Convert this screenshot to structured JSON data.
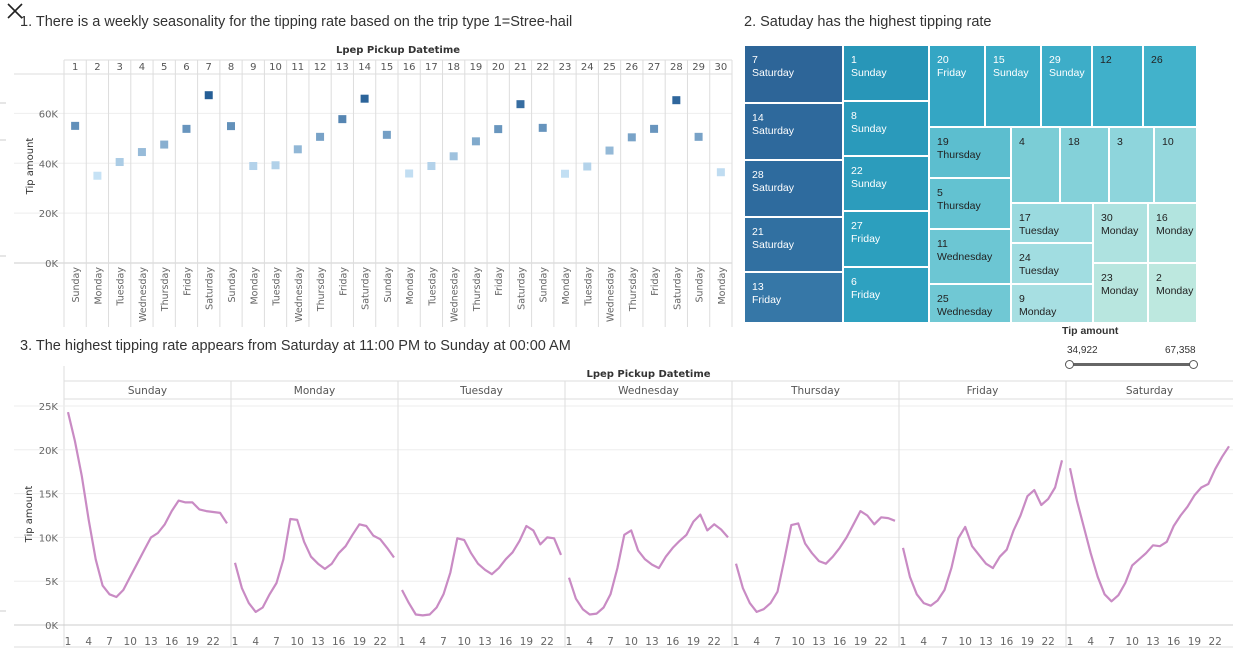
{
  "header": {
    "title1": "1. There is a weekly seasonality for the tipping rate based on the trip type 1=Stree-hail",
    "title2": "2. Satuday has the highest tipping rate",
    "title3": "3. The highest tipping rate appears from Saturday at 11:00 PM to Sunday at 00:00 AM"
  },
  "filter": {
    "label": "Tip amount",
    "min": "34,922",
    "max": "67,358"
  },
  "chart_data": [
    {
      "type": "scatter",
      "xlabel": "Lpep Pickup Datetime",
      "ylabel": "Tip amount",
      "ylim": [
        0,
        75000
      ],
      "yticks": [
        "0K",
        "20K",
        "40K",
        "60K"
      ],
      "grid": true,
      "days": [
        "1",
        "2",
        "3",
        "4",
        "5",
        "6",
        "7",
        "8",
        "9",
        "10",
        "11",
        "12",
        "13",
        "14",
        "15",
        "16",
        "17",
        "18",
        "19",
        "20",
        "21",
        "22",
        "23",
        "24",
        "25",
        "26",
        "27",
        "28",
        "29",
        "30"
      ],
      "weekdays": [
        "Sunday",
        "Monday",
        "Tuesday",
        "Wednesday",
        "Thursday",
        "Friday",
        "Saturday",
        "Sunday",
        "Monday",
        "Tuesday",
        "Wednesday",
        "Thursday",
        "Friday",
        "Saturday",
        "Sunday",
        "Monday",
        "Tuesday",
        "Wednesday",
        "Thursday",
        "Friday",
        "Saturday",
        "Sunday",
        "Monday",
        "Tuesday",
        "Wednesday",
        "Thursday",
        "Friday",
        "Saturday",
        "Sunday",
        "Monday"
      ],
      "values": [
        55000,
        35000,
        40500,
        44500,
        47500,
        53800,
        67300,
        54900,
        38900,
        39200,
        45600,
        50600,
        57700,
        65900,
        51400,
        35900,
        38900,
        42800,
        48800,
        53700,
        63700,
        54200,
        35800,
        38700,
        45100,
        50400,
        53800,
        65300,
        50600,
        36400
      ]
    },
    {
      "type": "treemap",
      "xlabel": "Tip amount",
      "cells": [
        {
          "day": "7",
          "weekday": "Saturday",
          "color": "#2d6598",
          "dark": true
        },
        {
          "day": "14",
          "weekday": "Saturday",
          "color": "#2e699c",
          "dark": true
        },
        {
          "day": "28",
          "weekday": "Saturday",
          "color": "#2e6b9e",
          "dark": true
        },
        {
          "day": "21",
          "weekday": "Saturday",
          "color": "#3170a1",
          "dark": true
        },
        {
          "day": "13",
          "weekday": "Friday",
          "color": "#3677a7",
          "dark": true
        },
        {
          "day": "1",
          "weekday": "Sunday",
          "color": "#2896b8",
          "dark": true
        },
        {
          "day": "8",
          "weekday": "Sunday",
          "color": "#2a9abb",
          "dark": true
        },
        {
          "day": "22",
          "weekday": "Sunday",
          "color": "#2c9cbc",
          "dark": true
        },
        {
          "day": "27",
          "weekday": "Friday",
          "color": "#2c9fbe",
          "dark": true
        },
        {
          "day": "6",
          "weekday": "Friday",
          "color": "#2ea1c0",
          "dark": true
        },
        {
          "day": "20",
          "weekday": "Friday",
          "color": "#34a6c4",
          "dark": true
        },
        {
          "day": "15",
          "weekday": "Sunday",
          "color": "#3aabc6",
          "dark": true
        },
        {
          "day": "29",
          "weekday": "Sunday",
          "color": "#3dadc8",
          "dark": true
        },
        {
          "day": "12",
          "weekday": "",
          "color": "#40b0ca",
          "dark": false
        },
        {
          "day": "26",
          "weekday": "",
          "color": "#42b2cb",
          "dark": false
        },
        {
          "day": "19",
          "weekday": "Thursday",
          "color": "#5cbecf",
          "dark": false
        },
        {
          "day": "5",
          "weekday": "Thursday",
          "color": "#63c2d1",
          "dark": false
        },
        {
          "day": "11",
          "weekday": "Wednesday",
          "color": "#6cc6d3",
          "dark": false
        },
        {
          "day": "25",
          "weekday": "Wednesday",
          "color": "#70c8d4",
          "dark": false
        },
        {
          "day": "4",
          "weekday": "",
          "color": "#7bcdd6",
          "dark": false
        },
        {
          "day": "18",
          "weekday": "",
          "color": "#84d1d9",
          "dark": false
        },
        {
          "day": "3",
          "weekday": "",
          "color": "#8ed5dc",
          "dark": false
        },
        {
          "day": "10",
          "weekday": "",
          "color": "#95d8dd",
          "dark": false
        },
        {
          "day": "17",
          "weekday": "Tuesday",
          "color": "#9adadf",
          "dark": false
        },
        {
          "day": "24",
          "weekday": "Tuesday",
          "color": "#a1dde1",
          "dark": false
        },
        {
          "day": "9",
          "weekday": "Monday",
          "color": "#a7dfe2",
          "dark": false
        },
        {
          "day": "30",
          "weekday": "Monday",
          "color": "#aee2e0",
          "dark": false
        },
        {
          "day": "16",
          "weekday": "Monday",
          "color": "#b2e4df",
          "dark": false
        },
        {
          "day": "23",
          "weekday": "Monday",
          "color": "#b8e6df",
          "dark": false
        },
        {
          "day": "2",
          "weekday": "Monday",
          "color": "#bde8df",
          "dark": false
        }
      ]
    },
    {
      "type": "line",
      "xlabel": "Lpep Pickup Datetime",
      "ylabel": "Tip amount",
      "ylim": [
        0,
        25000
      ],
      "yticks": [
        "0K",
        "5K",
        "10K",
        "15K",
        "20K",
        "25K"
      ],
      "xticks": [
        "1",
        "4",
        "7",
        "10",
        "13",
        "16",
        "19",
        "22"
      ],
      "color": "#c98bc4",
      "series": [
        {
          "name": "Sunday",
          "values": [
            24300,
            21000,
            17000,
            12000,
            7500,
            4500,
            3500,
            3200,
            4000,
            5500,
            7000,
            8500,
            10000,
            10500,
            11500,
            13000,
            14200,
            14000,
            14000,
            13200,
            13000,
            12900,
            12800,
            11600
          ]
        },
        {
          "name": "Monday",
          "values": [
            7100,
            4200,
            2500,
            1500,
            2000,
            3500,
            4800,
            7500,
            12100,
            12000,
            9500,
            7800,
            7000,
            6400,
            7000,
            8200,
            9000,
            10300,
            11500,
            11300,
            10200,
            9800,
            8800,
            7700
          ]
        },
        {
          "name": "Tuesday",
          "values": [
            4000,
            2500,
            1200,
            1100,
            1200,
            2000,
            3500,
            6000,
            9900,
            9700,
            8200,
            7000,
            6300,
            5800,
            6500,
            7500,
            8300,
            9600,
            11300,
            10800,
            9200,
            10000,
            9900,
            8000
          ]
        },
        {
          "name": "Wednesday",
          "values": [
            5400,
            3000,
            1800,
            1200,
            1300,
            2000,
            3500,
            6500,
            10300,
            10800,
            8500,
            7500,
            6900,
            6500,
            7800,
            8800,
            9600,
            10300,
            11800,
            12600,
            10800,
            11500,
            10900,
            10000
          ]
        },
        {
          "name": "Thursday",
          "values": [
            7000,
            4200,
            2500,
            1500,
            1800,
            2500,
            3800,
            7500,
            11400,
            11600,
            9300,
            8200,
            7300,
            7000,
            7800,
            8800,
            10000,
            11500,
            13000,
            12500,
            11500,
            12300,
            12200,
            11900
          ]
        },
        {
          "name": "Friday",
          "values": [
            8800,
            5500,
            3500,
            2500,
            2200,
            2800,
            4000,
            6500,
            9900,
            11200,
            9000,
            8000,
            7000,
            6500,
            7800,
            8600,
            10800,
            12500,
            14700,
            15400,
            13700,
            14400,
            15700,
            18800
          ]
        },
        {
          "name": "Saturday",
          "values": [
            17900,
            14200,
            11200,
            8200,
            5500,
            3500,
            2700,
            3400,
            4800,
            6800,
            7500,
            8200,
            9100,
            9000,
            9500,
            11300,
            12500,
            13500,
            14800,
            15700,
            16100,
            17800,
            19200,
            20400
          ]
        }
      ]
    }
  ]
}
